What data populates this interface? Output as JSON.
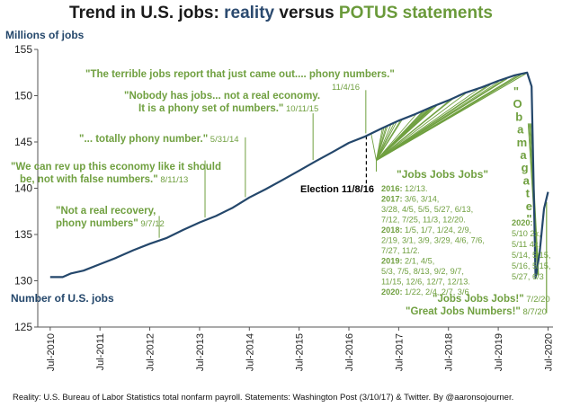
{
  "chart_data": {
    "type": "line",
    "title": {
      "part1": "Trend in U.S. jobs: ",
      "part2": "reality",
      "part3": " versus ",
      "part4": "POTUS statements"
    },
    "ylabel": "Millions of jobs",
    "ylim": [
      125,
      155
    ],
    "yticks": [
      125,
      130,
      135,
      140,
      145,
      150,
      155
    ],
    "xlim": [
      2010.25,
      2020.6
    ],
    "xticks": [
      {
        "x": 2010.5,
        "label": "Jul-2010"
      },
      {
        "x": 2011.5,
        "label": "Jul-2011"
      },
      {
        "x": 2012.5,
        "label": "Jul-2012"
      },
      {
        "x": 2013.5,
        "label": "Jul-2013"
      },
      {
        "x": 2014.5,
        "label": "Jul-2014"
      },
      {
        "x": 2015.5,
        "label": "Jul-2015"
      },
      {
        "x": 2016.5,
        "label": "Jul-2016"
      },
      {
        "x": 2017.5,
        "label": "Jul-2017"
      },
      {
        "x": 2018.5,
        "label": "Jul-2018"
      },
      {
        "x": 2019.5,
        "label": "Jul-2019"
      },
      {
        "x": 2020.5,
        "label": "Jul-2020"
      }
    ],
    "colors": {
      "reality": "#24476b",
      "potus": "#70a040",
      "black": "#000000"
    },
    "series": [
      {
        "name": "Number of U.S. jobs",
        "points": [
          [
            2010.5,
            130.4
          ],
          [
            2010.75,
            130.4
          ],
          [
            2010.92,
            130.8
          ],
          [
            2011.17,
            131.1
          ],
          [
            2011.5,
            131.8
          ],
          [
            2011.83,
            132.5
          ],
          [
            2012.17,
            133.3
          ],
          [
            2012.5,
            134.0
          ],
          [
            2012.83,
            134.6
          ],
          [
            2013.17,
            135.5
          ],
          [
            2013.5,
            136.3
          ],
          [
            2013.83,
            137.0
          ],
          [
            2014.17,
            137.9
          ],
          [
            2014.5,
            139.0
          ],
          [
            2014.83,
            139.9
          ],
          [
            2015.17,
            140.9
          ],
          [
            2015.5,
            141.9
          ],
          [
            2015.83,
            142.9
          ],
          [
            2016.17,
            143.9
          ],
          [
            2016.5,
            144.9
          ],
          [
            2016.83,
            145.6
          ],
          [
            2017.17,
            146.5
          ],
          [
            2017.5,
            147.3
          ],
          [
            2017.83,
            148.0
          ],
          [
            2018.17,
            148.8
          ],
          [
            2018.5,
            149.5
          ],
          [
            2018.83,
            150.3
          ],
          [
            2019.17,
            150.9
          ],
          [
            2019.5,
            151.6
          ],
          [
            2019.83,
            152.2
          ],
          [
            2020.08,
            152.5
          ],
          [
            2020.17,
            151.0
          ],
          [
            2020.25,
            130.3
          ],
          [
            2020.33,
            133.0
          ],
          [
            2020.42,
            137.8
          ],
          [
            2020.5,
            139.6
          ]
        ]
      }
    ],
    "series_label": "Number of U.S. jobs",
    "election": {
      "x": 2016.85,
      "label": "Election 11/8/16"
    },
    "quotes": [
      {
        "text": "\"The terrible jobs report that just came out.... phony numbers.\"",
        "date": "11/4/16",
        "x": 2016.84
      },
      {
        "text1": "\"Nobody has jobs...  not a real economy.",
        "text2": "It is a phony set of numbers.\"",
        "date": "10/11/15",
        "x": 2015.78
      },
      {
        "text": "\"... totally phony number.\"",
        "date": "5/31/14",
        "x": 2014.42
      },
      {
        "text1": "\"We can rev up this economy like it should",
        "text2": "be, not with false numbers.\"",
        "date": "8/11/13",
        "x": 2013.61
      },
      {
        "text1": "\"Not a real recovery,",
        "text2": "phony numbers\"",
        "date": "9/7/12",
        "x": 2012.69
      }
    ],
    "jobs_heading": "\"Jobs Jobs Jobs\"",
    "jobs_dates": [
      {
        "year": "2016:",
        "dates": " 12/13. "
      },
      {
        "year": "2017:",
        "dates": " 3/6, 3/14,"
      },
      {
        "year": "",
        "dates": "3/28, 4/5, 5/5, 5/27, 6/13,"
      },
      {
        "year": "",
        "dates": "7/12, 7/25, 11/3, 12/20."
      },
      {
        "year": "2018:",
        "dates": " 1/5, 1/7, 1/24, 2/9,"
      },
      {
        "year": "",
        "dates": "2/19, 3/1, 3/9, 3/29, 4/6, 7/6,"
      },
      {
        "year": "",
        "dates": "7/27, 11/2. "
      },
      {
        "year": "2019:",
        "dates": " 2/1, 4/5,"
      },
      {
        "year": "",
        "dates": "5/3, 7/5, 8/13, 9/2, 9/7,"
      },
      {
        "year": "",
        "dates": "11/15, 12/6, 12/7, 12/13."
      },
      {
        "year": "2020:",
        "dates": " 1/22, 2/4, 2/7, 3/6"
      }
    ],
    "obamagate_letters": [
      "\"",
      "O",
      "b",
      "a",
      "m",
      "a",
      "g",
      "a",
      "t",
      "e",
      "\""
    ],
    "obamagate_dates": [
      "2020:",
      "5/10 2x,",
      "5/11 4x,",
      "5/14, 5/15,",
      "5/16, 5/15,",
      "5/27, 6/3"
    ],
    "final_quotes": [
      {
        "text": "\"Jobs Jobs Jobs!\"",
        "date": "7/2/20"
      },
      {
        "text": "\"Great Jobs Numbers!\"",
        "date": "8/7/20"
      }
    ],
    "source": "Reality: U.S. Bureau of Labor Statistics total nonfarm payroll. Statements: Washington Post (3/10/17) & Twitter. By @aaronsojourner."
  }
}
